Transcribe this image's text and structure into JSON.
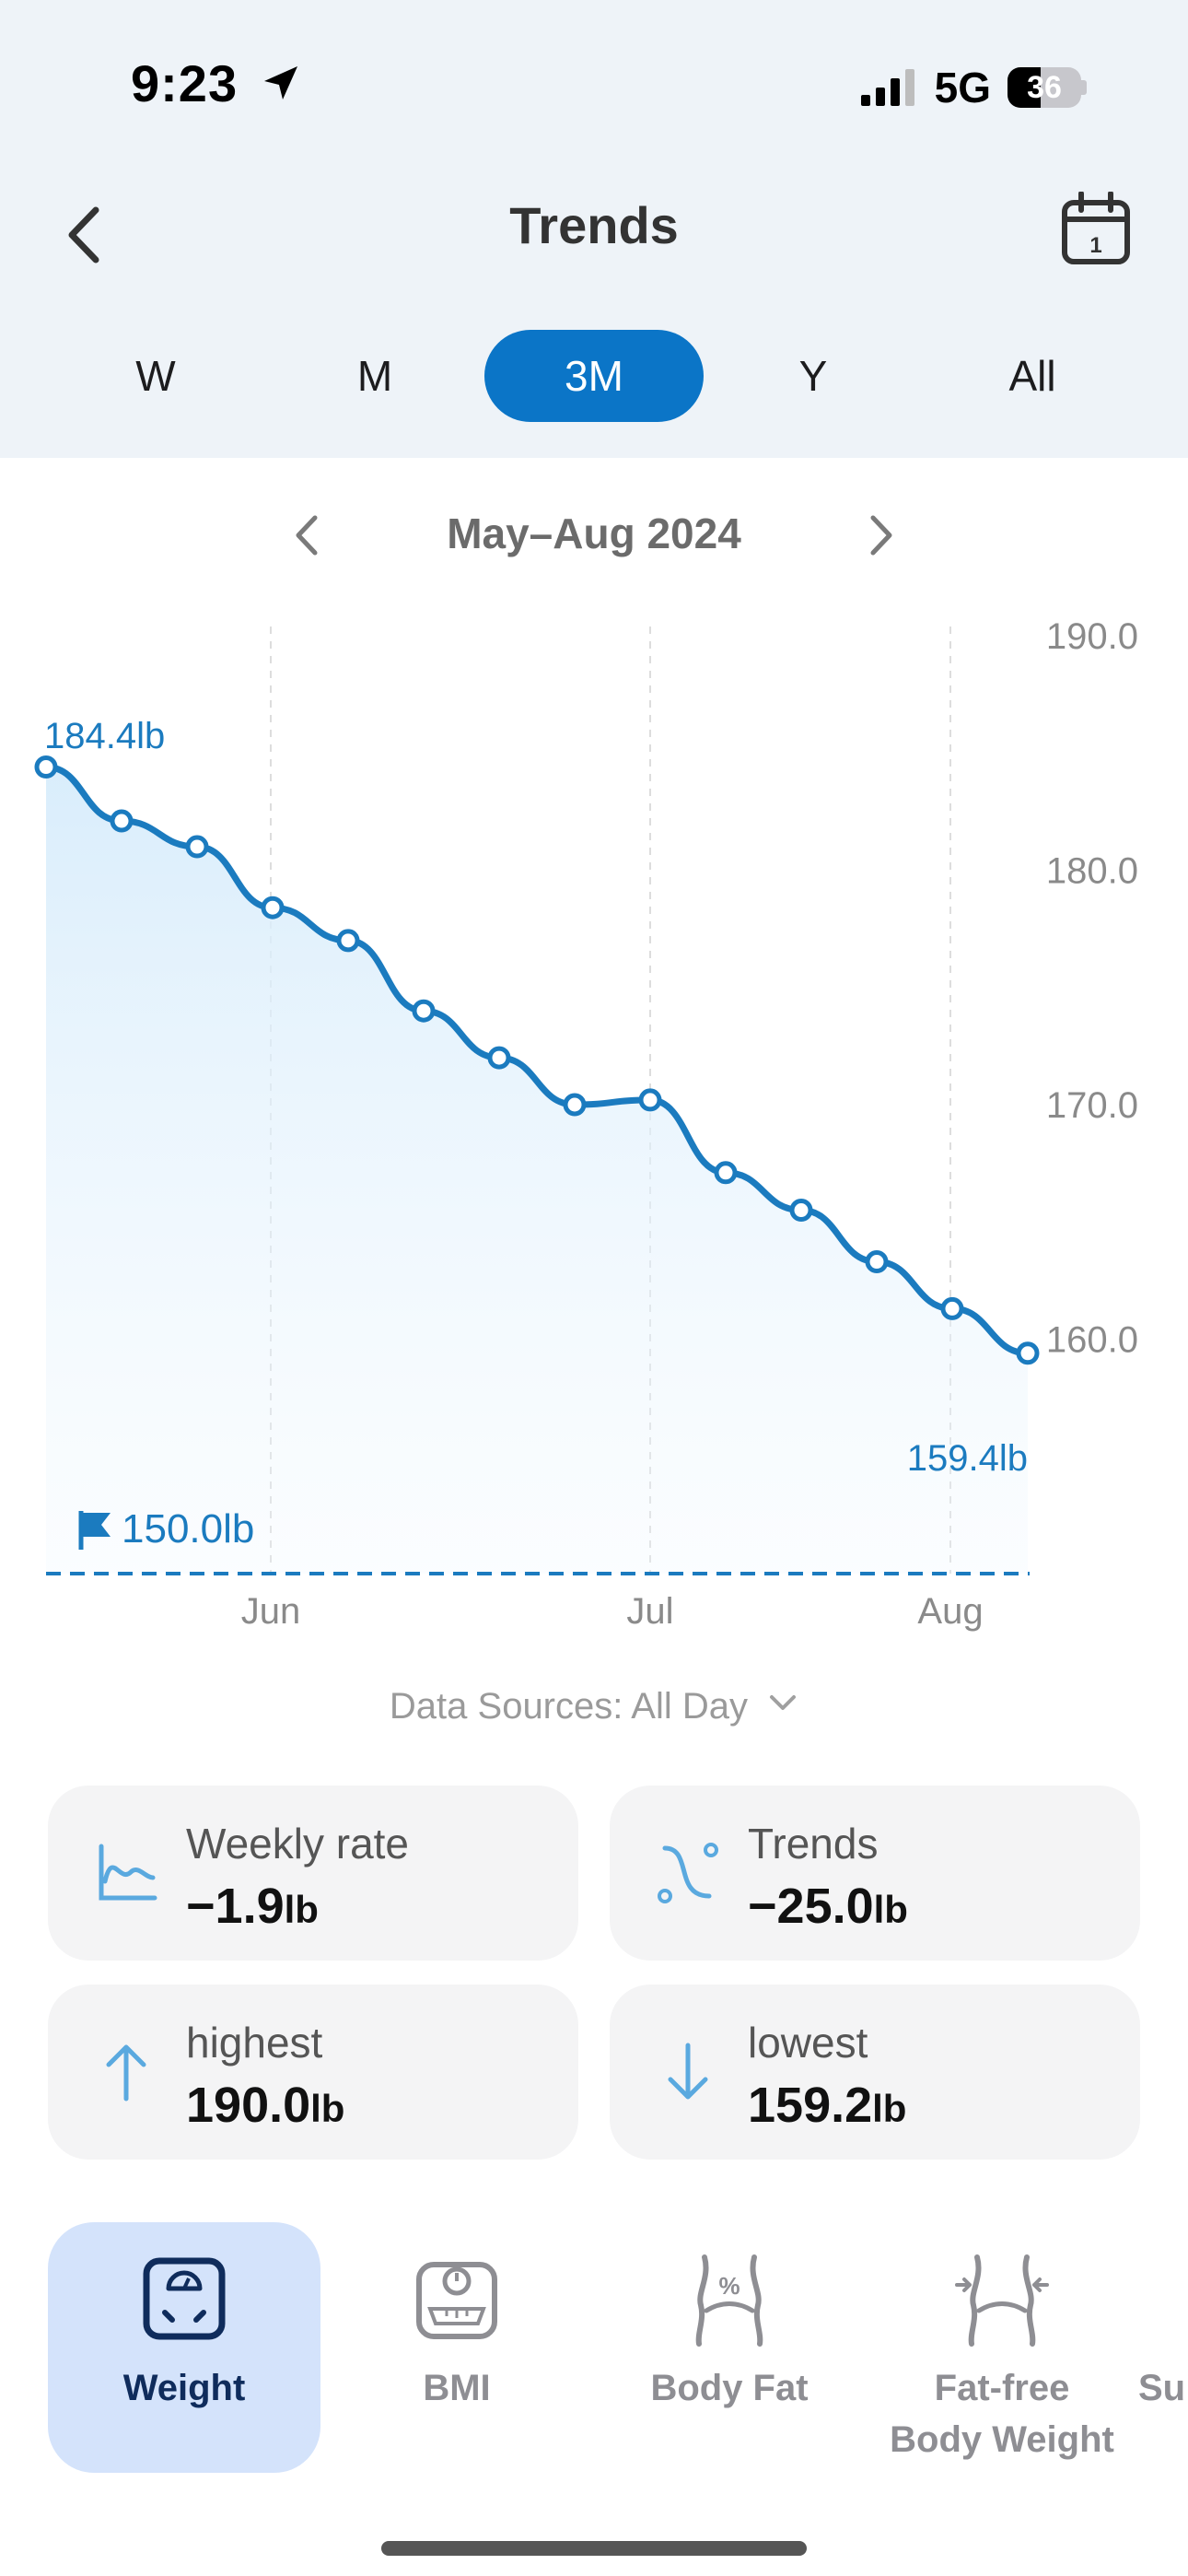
{
  "status_bar": {
    "time": "9:23",
    "network": "5G",
    "battery": "36"
  },
  "header": {
    "title": "Trends"
  },
  "tabs": [
    {
      "label": "W",
      "active": false
    },
    {
      "label": "M",
      "active": false
    },
    {
      "label": "3M",
      "active": true
    },
    {
      "label": "Y",
      "active": false
    },
    {
      "label": "All",
      "active": false
    }
  ],
  "range": {
    "label": "May–Aug 2024"
  },
  "chart_data": {
    "type": "line",
    "x_axis": {
      "ticks": [
        "Jun",
        "Jul",
        "Aug"
      ]
    },
    "y_axis": {
      "ticks": [
        "190.0",
        "180.0",
        "170.0",
        "160.0"
      ],
      "ylim": [
        150.0,
        190.0
      ],
      "position": "right"
    },
    "series": [
      {
        "values": [
          184.4,
          182.1,
          181.0,
          178.4,
          177.0,
          174.0,
          172.0,
          170.0,
          170.2,
          167.1,
          165.5,
          163.3,
          161.3,
          159.4
        ]
      }
    ],
    "start_label": "184.4lb",
    "end_label": "159.4lb",
    "goal": {
      "value": 150.0,
      "label": "150.0lb"
    },
    "grid": "vertical-dashed"
  },
  "data_sources": {
    "label": "Data Sources: All Day"
  },
  "cards": [
    {
      "label": "Weekly rate",
      "value": "−1.9",
      "unit": "lb",
      "icon": "trend-chart-icon"
    },
    {
      "label": "Trends",
      "value": "−25.0",
      "unit": "lb",
      "icon": "trend-curve-icon"
    },
    {
      "label": "highest",
      "value": "190.0",
      "unit": "lb",
      "icon": "arrow-up-icon"
    },
    {
      "label": "lowest",
      "value": "159.2",
      "unit": "lb",
      "icon": "arrow-down-icon"
    }
  ],
  "metrics": [
    {
      "label": "Weight",
      "active": true,
      "icon": "scale-icon"
    },
    {
      "label": "BMI",
      "active": false,
      "icon": "bmi-scale-icon"
    },
    {
      "label": "Body Fat",
      "active": false,
      "icon": "body-fat-icon"
    },
    {
      "label": "Fat-free Body Weight",
      "line1": "Fat-free",
      "line2": "Body Weight",
      "active": false,
      "icon": "fat-free-icon"
    },
    {
      "label": "Su",
      "active": false
    }
  ],
  "colors": {
    "accent": "#0b75c7",
    "line": "#1b7bbf",
    "header_bg": "#eef3f8",
    "active_metric_bg": "#d4e3fb"
  }
}
